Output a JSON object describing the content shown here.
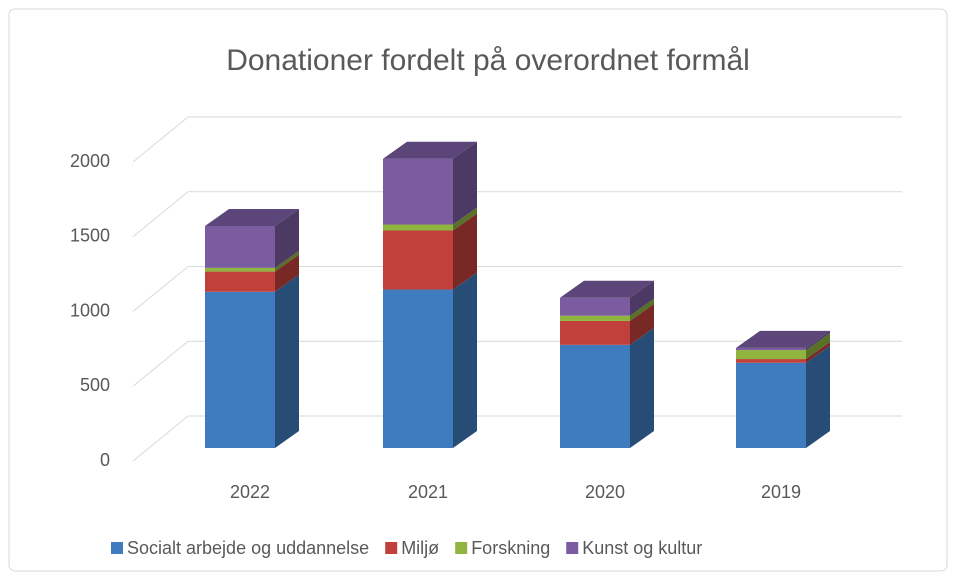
{
  "chart_data": {
    "type": "bar3d_stacked",
    "title": "Donationer fordelt på overordnet formål",
    "categories": [
      "2022",
      "2021",
      "2020",
      "2019"
    ],
    "series": [
      {
        "name": "Socialt arbejde og uddannelse",
        "color": "#3f7cbf",
        "values": [
          1045,
          1060,
          690,
          570
        ]
      },
      {
        "name": "Miljø",
        "color": "#c2403b",
        "values": [
          135,
          395,
          160,
          25
        ]
      },
      {
        "name": "Forskning",
        "color": "#8fb53f",
        "values": [
          25,
          40,
          35,
          60
        ]
      },
      {
        "name": "Kunst og kultur",
        "color": "#7b5ca1",
        "values": [
          280,
          440,
          120,
          15
        ]
      }
    ],
    "ylim": [
      0,
      2000
    ],
    "yticks": [
      0,
      500,
      1000,
      1500,
      2000
    ],
    "grid": true,
    "legend": "bottom"
  }
}
